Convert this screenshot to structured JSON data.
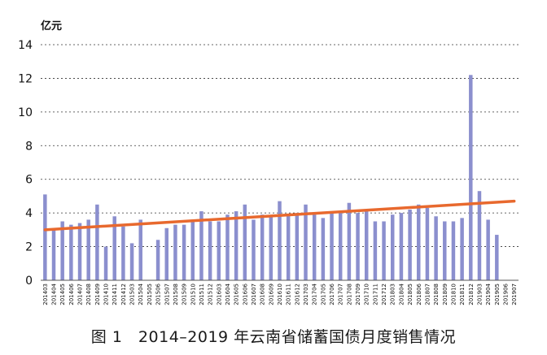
{
  "chart_data": {
    "type": "bar",
    "unit_label": "亿元",
    "caption": "图 1　2014–2019 年云南省储蓄国债月度销售情况",
    "ylim": [
      0,
      14
    ],
    "yticks": [
      "0",
      "2",
      "4",
      "6",
      "8",
      "10",
      "12",
      "14"
    ],
    "grid": true,
    "bar_color": "#8b8fce",
    "trend_color": "#e8692e",
    "trendline": {
      "start": 3.0,
      "end": 4.7
    },
    "categories": [
      "201403",
      "201404",
      "201405",
      "201406",
      "201407",
      "201408",
      "201409",
      "201410",
      "201411",
      "201412",
      "201503",
      "201504",
      "201505",
      "201506",
      "201507",
      "201508",
      "201509",
      "201510",
      "201511",
      "201512",
      "201603",
      "201604",
      "201605",
      "201606",
      "201607",
      "201608",
      "201609",
      "201610",
      "201611",
      "201612",
      "201703",
      "201704",
      "201705",
      "201706",
      "201707",
      "201708",
      "201709",
      "201710",
      "201711",
      "201712",
      "201803",
      "201804",
      "201805",
      "201806",
      "201807",
      "201808",
      "201809",
      "201810",
      "201811",
      "201812",
      "201903",
      "201904",
      "201905",
      "201906",
      "201907"
    ],
    "values": [
      5.1,
      3.0,
      3.5,
      3.3,
      3.4,
      3.6,
      4.5,
      2.0,
      3.8,
      3.2,
      2.2,
      3.6,
      0,
      2.4,
      3.1,
      3.3,
      3.3,
      3.6,
      4.1,
      3.5,
      3.5,
      3.9,
      4.1,
      4.5,
      3.6,
      3.9,
      3.8,
      4.7,
      3.9,
      4.0,
      4.5,
      3.9,
      3.7,
      4.0,
      4.1,
      4.6,
      4.0,
      4.1,
      3.5,
      3.5,
      3.9,
      4.0,
      4.2,
      4.5,
      4.3,
      3.8,
      3.5,
      3.5,
      3.7,
      12.2,
      5.3,
      3.6,
      2.7,
      0,
      0
    ]
  }
}
